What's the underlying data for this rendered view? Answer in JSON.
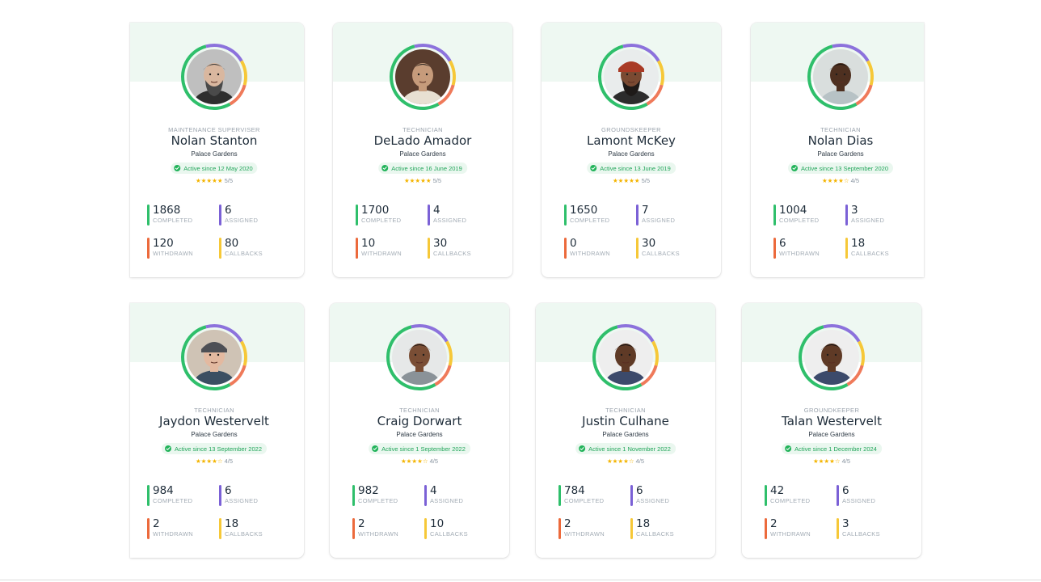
{
  "colors": {
    "completed": "#2fbf6b",
    "assigned": "#7b61d6",
    "withdrawn": "#ec6a3c",
    "callbacks": "#f6c838",
    "ring_green": "#2fbf6b",
    "ring_purple": "#8c72dc",
    "ring_yellow": "#f6c838",
    "ring_red": "#ef7a5a",
    "header_band": "#eef8f2",
    "active_green": "#22a55a",
    "star": "#f4b400"
  },
  "stat_labels": {
    "completed": "COMPLETED",
    "assigned": "ASSIGNED",
    "withdrawn": "WITHDRAWN",
    "callbacks": "CALLBACKS"
  },
  "cards": [
    {
      "role": "MAINTENANCE SUPERVISER",
      "name": "Nolan Stanton",
      "location": "Palace Gardens",
      "status": "Active since 12 May 2020",
      "stars": 5,
      "rating": "5/5",
      "completed": "1868",
      "assigned": "6",
      "withdrawn": "120",
      "callbacks": "80",
      "avatar": {
        "skin": "#d9b79f",
        "hair": "#3a3a3a",
        "bg": "#bfbfbf",
        "shirt": "#2e2e2e",
        "beard": "#4a4a4a",
        "hat": ""
      }
    },
    {
      "role": "TECHNICIAN",
      "name": "DeLado Amador",
      "location": "Palace Gardens",
      "status": "Active since 16 June 2019",
      "stars": 5,
      "rating": "5/5",
      "completed": "1700",
      "assigned": "4",
      "withdrawn": "10",
      "callbacks": "30",
      "avatar": {
        "skin": "#c69b7b",
        "hair": "#2b2420",
        "bg": "#5a3d2e",
        "shirt": "#e8e0d2",
        "beard": "",
        "hat": ""
      }
    },
    {
      "role": "GROUNDSKEEPER",
      "name": "Lamont McKey",
      "location": "Palace Gardens",
      "status": "Active since 13 June 2019",
      "stars": 5,
      "rating": "5/5",
      "completed": "1650",
      "assigned": "7",
      "withdrawn": "0",
      "callbacks": "30",
      "avatar": {
        "skin": "#7a4a32",
        "hair": "#1e1a18",
        "bg": "#e9ecec",
        "shirt": "#2c2c2c",
        "beard": "#1e1a18",
        "hat": "#a93a25"
      }
    },
    {
      "role": "TECHNICIAN",
      "name": "Nolan Dias",
      "location": "Palace Gardens",
      "status": "Active since 13 September 2020",
      "stars": 4,
      "rating": "4/5",
      "completed": "1004",
      "assigned": "3",
      "withdrawn": "6",
      "callbacks": "18",
      "avatar": {
        "skin": "#4e3020",
        "hair": "#1b1410",
        "bg": "#d9dedd",
        "shirt": "#b7c2c5",
        "beard": "",
        "hat": ""
      }
    },
    {
      "role": "TECHNICIAN",
      "name": "Jaydon Westervelt",
      "location": "Palace Gardens",
      "status": "Active since 13 September 2022",
      "stars": 4,
      "rating": "4/5",
      "completed": "984",
      "assigned": "6",
      "withdrawn": "2",
      "callbacks": "18",
      "avatar": {
        "skin": "#e3b9a0",
        "hair": "#6b4c36",
        "bg": "#cfc3b5",
        "shirt": "#3b4f62",
        "beard": "",
        "hat": "#4d4f55"
      }
    },
    {
      "role": "TECHNICIAN",
      "name": "Craig Dorwart",
      "location": "Palace Gardens",
      "status": "Active since 1 September 2022",
      "stars": 4,
      "rating": "4/5",
      "completed": "982",
      "assigned": "4",
      "withdrawn": "2",
      "callbacks": "10",
      "avatar": {
        "skin": "#7a4e35",
        "hair": "#1a1412",
        "bg": "#e6e8e8",
        "shirt": "#8a9298",
        "beard": "",
        "hat": ""
      }
    },
    {
      "role": "TECHNICIAN",
      "name": "Justin Culhane",
      "location": "Palace Gardens",
      "status": "Active since 1 November 2022",
      "stars": 4,
      "rating": "4/5",
      "completed": "784",
      "assigned": "6",
      "withdrawn": "2",
      "callbacks": "18",
      "avatar": {
        "skin": "#5f3a26",
        "hair": "#141010",
        "bg": "#eeeeee",
        "shirt": "#3c4a6b",
        "beard": "",
        "hat": ""
      }
    },
    {
      "role": "GROUNDKEEPER",
      "name": "Talan Westervelt",
      "location": "Palace Gardens",
      "status": "Active since 1 December 2024",
      "stars": 4,
      "rating": "4/5",
      "completed": "42",
      "assigned": "6",
      "withdrawn": "2",
      "callbacks": "3",
      "avatar": {
        "skin": "#5f3a26",
        "hair": "#141010",
        "bg": "#eeeeee",
        "shirt": "#3c4a6b",
        "beard": "",
        "hat": ""
      }
    }
  ]
}
